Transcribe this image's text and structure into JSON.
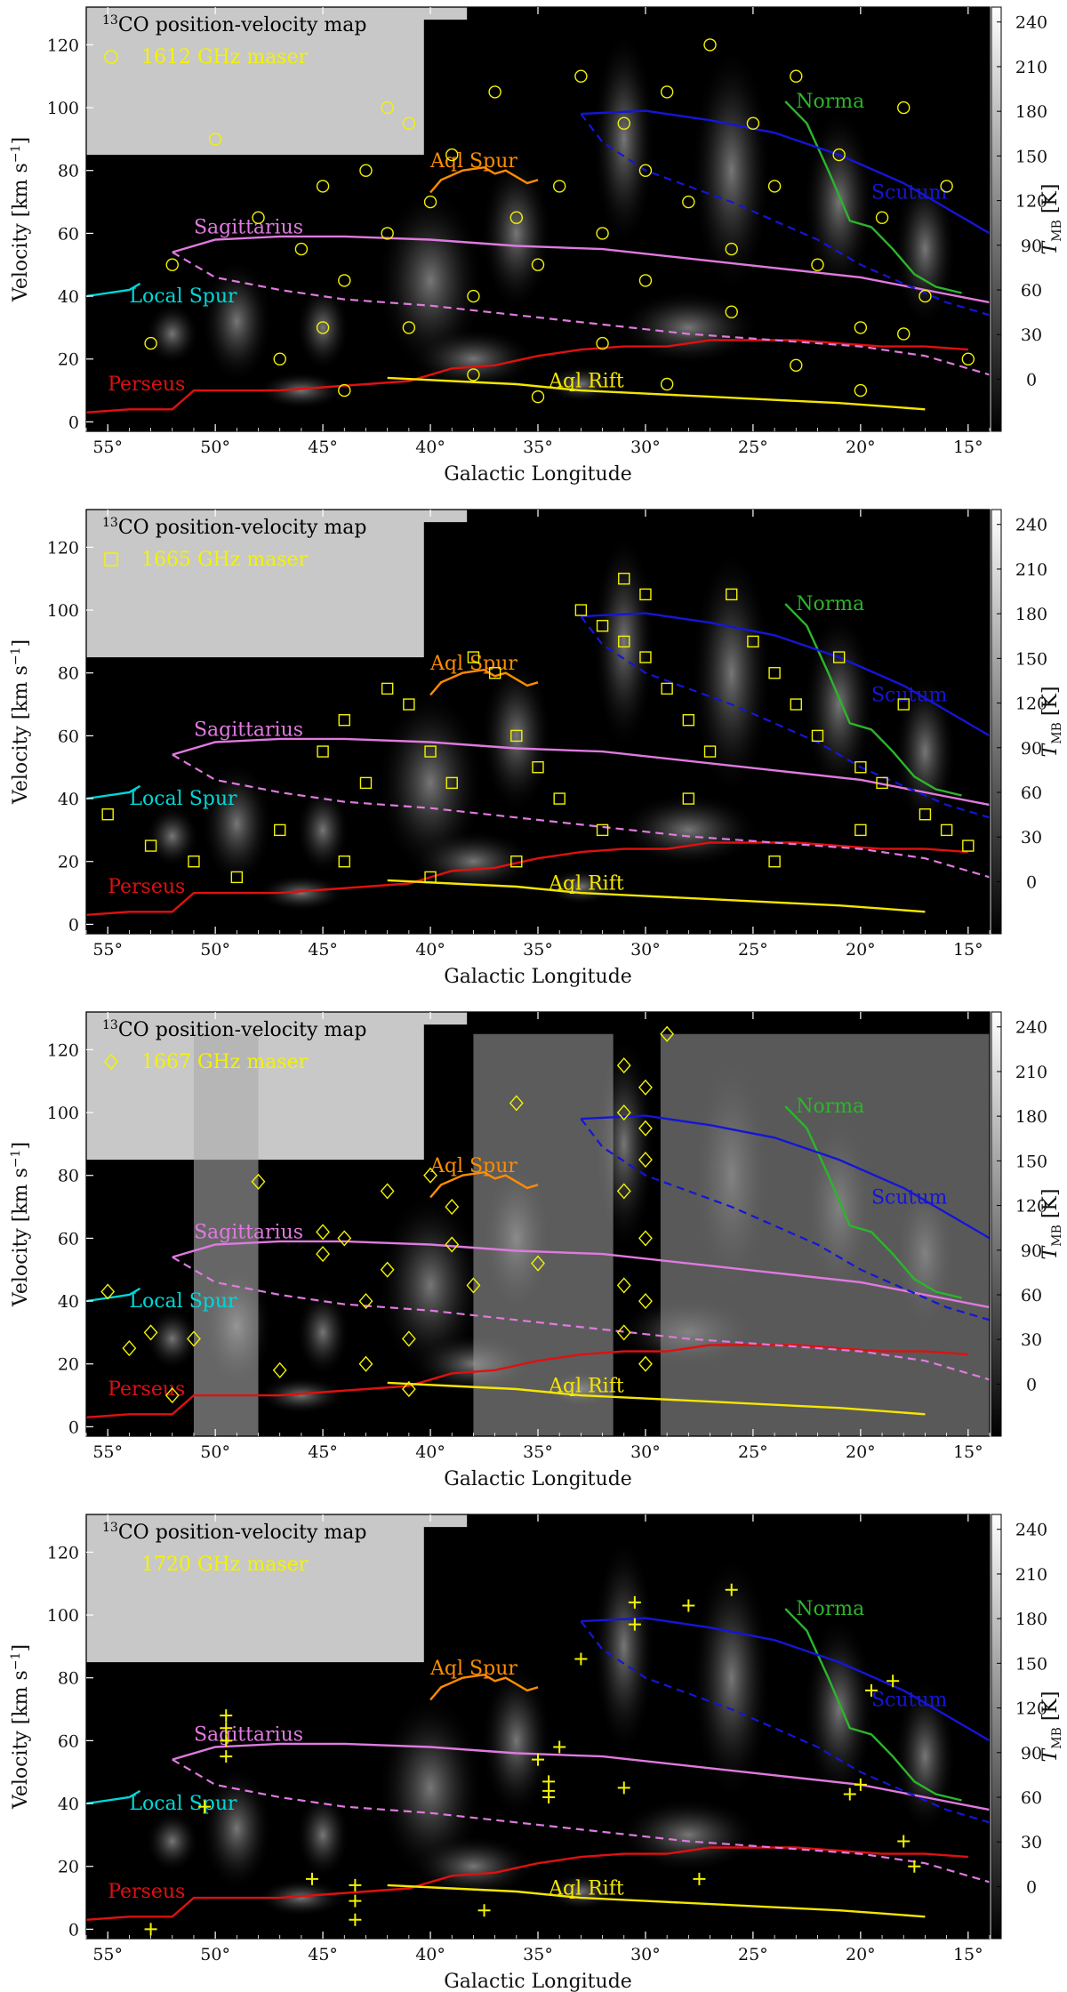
{
  "chart_data": [
    {
      "type": "scatter",
      "title": "13CO position-velocity map",
      "legend": "1612 GHz maser",
      "marker": "circle",
      "xlabel": "Galactic Longitude",
      "ylabel": "Velocity [km s⁻¹]",
      "colorbar_label": "T_MB [K]",
      "points": [
        [
          53,
          25
        ],
        [
          52,
          50
        ],
        [
          50,
          90
        ],
        [
          48,
          65
        ],
        [
          46,
          55
        ],
        [
          45,
          30
        ],
        [
          44,
          45
        ],
        [
          43,
          80
        ],
        [
          42,
          60
        ],
        [
          41,
          95
        ],
        [
          40,
          70
        ],
        [
          39,
          85
        ],
        [
          38,
          40
        ],
        [
          37,
          105
        ],
        [
          36,
          65
        ],
        [
          35,
          50
        ],
        [
          34,
          75
        ],
        [
          33,
          110
        ],
        [
          32,
          60
        ],
        [
          31,
          95
        ],
        [
          30,
          80
        ],
        [
          30,
          45
        ],
        [
          29,
          105
        ],
        [
          28,
          70
        ],
        [
          27,
          120
        ],
        [
          26,
          55
        ],
        [
          25,
          95
        ],
        [
          24,
          75
        ],
        [
          23,
          110
        ],
        [
          22,
          50
        ],
        [
          21,
          85
        ],
        [
          20,
          30
        ],
        [
          19,
          65
        ],
        [
          18,
          100
        ],
        [
          17,
          40
        ],
        [
          16,
          75
        ],
        [
          15,
          20
        ],
        [
          47,
          20
        ],
        [
          44,
          10
        ],
        [
          41,
          30
        ],
        [
          38,
          15
        ],
        [
          35,
          8
        ],
        [
          32,
          25
        ],
        [
          29,
          12
        ],
        [
          26,
          35
        ],
        [
          23,
          18
        ],
        [
          20,
          10
        ],
        [
          18,
          28
        ],
        [
          45,
          75
        ],
        [
          42,
          100
        ]
      ]
    },
    {
      "type": "scatter",
      "title": "13CO position-velocity map",
      "legend": "1665 GHz maser",
      "marker": "square",
      "xlabel": "Galactic Longitude",
      "ylabel": "Velocity [km s⁻¹]",
      "colorbar_label": "T_MB [K]",
      "points": [
        [
          55,
          35
        ],
        [
          53,
          25
        ],
        [
          51,
          20
        ],
        [
          49,
          15
        ],
        [
          47,
          30
        ],
        [
          45,
          55
        ],
        [
          44,
          65
        ],
        [
          43,
          45
        ],
        [
          42,
          75
        ],
        [
          41,
          70
        ],
        [
          40,
          55
        ],
        [
          39,
          45
        ],
        [
          38,
          85
        ],
        [
          37,
          80
        ],
        [
          36,
          60
        ],
        [
          35,
          50
        ],
        [
          34,
          40
        ],
        [
          33,
          100
        ],
        [
          32,
          95
        ],
        [
          31,
          110
        ],
        [
          31,
          90
        ],
        [
          30,
          105
        ],
        [
          30,
          85
        ],
        [
          29,
          75
        ],
        [
          28,
          65
        ],
        [
          27,
          55
        ],
        [
          26,
          105
        ],
        [
          25,
          90
        ],
        [
          24,
          80
        ],
        [
          23,
          70
        ],
        [
          22,
          60
        ],
        [
          21,
          85
        ],
        [
          20,
          50
        ],
        [
          19,
          45
        ],
        [
          18,
          70
        ],
        [
          17,
          35
        ],
        [
          16,
          30
        ],
        [
          15,
          25
        ],
        [
          44,
          20
        ],
        [
          40,
          15
        ],
        [
          36,
          20
        ],
        [
          32,
          30
        ],
        [
          28,
          40
        ],
        [
          24,
          20
        ],
        [
          20,
          30
        ]
      ]
    },
    {
      "type": "scatter",
      "title": "13CO position-velocity map",
      "legend": "1667 GHz maser",
      "marker": "diamond",
      "xlabel": "Galactic Longitude",
      "ylabel": "Velocity [km s⁻¹]",
      "colorbar_label": "T_MB [K]",
      "points": [
        [
          55,
          43
        ],
        [
          54,
          25
        ],
        [
          53,
          30
        ],
        [
          52,
          10
        ],
        [
          51,
          28
        ],
        [
          48,
          78
        ],
        [
          47,
          18
        ],
        [
          45,
          62
        ],
        [
          45,
          55
        ],
        [
          44,
          60
        ],
        [
          43,
          40
        ],
        [
          43,
          20
        ],
        [
          42,
          75
        ],
        [
          42,
          50
        ],
        [
          41,
          28
        ],
        [
          41,
          12
        ],
        [
          40,
          80
        ],
        [
          39,
          70
        ],
        [
          39,
          58
        ],
        [
          38,
          45
        ],
        [
          36,
          103
        ],
        [
          35,
          52
        ],
        [
          31,
          115
        ],
        [
          31,
          100
        ],
        [
          30,
          95
        ],
        [
          30,
          85
        ],
        [
          31,
          75
        ],
        [
          30,
          60
        ],
        [
          31,
          45
        ],
        [
          30,
          40
        ],
        [
          31,
          30
        ],
        [
          30,
          20
        ],
        [
          29,
          125
        ],
        [
          30,
          108
        ]
      ]
    },
    {
      "type": "scatter",
      "title": "13CO position-velocity map",
      "legend": "1720 GHz maser",
      "marker": "plus",
      "xlabel": "Galactic Longitude",
      "ylabel": "Velocity [km s⁻¹]",
      "colorbar_label": "T_MB [K]",
      "points": [
        [
          53,
          0
        ],
        [
          50.5,
          39
        ],
        [
          49.5,
          68
        ],
        [
          49.5,
          64
        ],
        [
          49.5,
          60
        ],
        [
          49.5,
          55
        ],
        [
          45.5,
          16
        ],
        [
          43.5,
          14
        ],
        [
          43.5,
          9
        ],
        [
          43.5,
          3
        ],
        [
          37.5,
          6
        ],
        [
          35,
          54
        ],
        [
          34.5,
          47
        ],
        [
          34.5,
          44
        ],
        [
          34.5,
          42
        ],
        [
          34,
          58
        ],
        [
          33,
          86
        ],
        [
          31,
          45
        ],
        [
          30.5,
          104
        ],
        [
          30.5,
          97
        ],
        [
          28,
          103
        ],
        [
          27.5,
          16
        ],
        [
          26,
          108
        ],
        [
          20.5,
          43
        ],
        [
          20,
          46
        ],
        [
          19.5,
          76
        ],
        [
          18.5,
          79
        ],
        [
          18,
          28
        ],
        [
          17.5,
          20
        ]
      ]
    }
  ],
  "panels": [
    {
      "title_sup": "13",
      "title_text": "CO position-velocity map",
      "legend_text": "1612 GHz maser",
      "marker": "circle"
    },
    {
      "title_sup": "13",
      "title_text": "CO position-velocity map",
      "legend_text": "1665 GHz maser",
      "marker": "square"
    },
    {
      "title_sup": "13",
      "title_text": "CO position-velocity map",
      "legend_text": "1667 GHz maser",
      "marker": "diamond"
    },
    {
      "title_sup": "13",
      "title_text": "CO position-velocity map",
      "legend_text": "1720 GHz maser",
      "marker": "plus"
    }
  ],
  "axes": {
    "xlabel": "Galactic Longitude",
    "ylabel_main": "Velocity [km s",
    "ylabel_sup": "−1",
    "ylabel_end": "]",
    "cbar_label_main": "T",
    "cbar_label_sub": "MB",
    "cbar_label_end": " [K]",
    "xticks": [
      "55°",
      "50°",
      "45°",
      "40°",
      "35°",
      "30°",
      "25°",
      "20°",
      "15°"
    ],
    "xtick_values": [
      55,
      50,
      45,
      40,
      35,
      30,
      25,
      20,
      15
    ],
    "yticks": [
      "0",
      "20",
      "40",
      "60",
      "80",
      "100",
      "120"
    ],
    "ytick_values": [
      0,
      20,
      40,
      60,
      80,
      100,
      120
    ],
    "cbar_ticks": [
      "0",
      "30",
      "60",
      "90",
      "120",
      "150",
      "180",
      "210",
      "240"
    ],
    "cbar_tick_values": [
      0,
      30,
      60,
      90,
      120,
      150,
      180,
      210,
      240
    ],
    "xlim": [
      56,
      14
    ],
    "ylim": [
      -3,
      132
    ],
    "cbar_lim": [
      -35,
      250
    ]
  },
  "arms": [
    {
      "label": "Norma",
      "color": "#2bb52b",
      "lx": 23,
      "ly": 100,
      "pts": [
        [
          23.5,
          102
        ],
        [
          22.5,
          95
        ],
        [
          21.5,
          80
        ],
        [
          21,
          72
        ],
        [
          20.5,
          64
        ],
        [
          19.5,
          62
        ],
        [
          18.5,
          55
        ],
        [
          17.5,
          47
        ],
        [
          16.5,
          43
        ],
        [
          15.3,
          41
        ]
      ]
    },
    {
      "label": "Scutum",
      "color": "#1515d8",
      "lx": 19.5,
      "ly": 71,
      "pts": [
        [
          33,
          98
        ],
        [
          30,
          99
        ],
        [
          27,
          96
        ],
        [
          24,
          92
        ],
        [
          21,
          85
        ],
        [
          18,
          76
        ],
        [
          16,
          68
        ],
        [
          14,
          60
        ]
      ]
    },
    {
      "label": "Sagittarius",
      "color": "#e07ae0",
      "lx": 51,
      "ly": 60,
      "pts": [
        [
          52,
          54
        ],
        [
          50,
          58
        ],
        [
          47,
          59
        ],
        [
          44,
          59
        ],
        [
          40,
          58
        ],
        [
          36,
          56
        ],
        [
          32,
          55
        ],
        [
          28,
          52
        ],
        [
          24,
          49
        ],
        [
          20,
          46
        ],
        [
          17,
          42
        ],
        [
          14,
          38
        ]
      ]
    },
    {
      "label": "Aql Spur",
      "color": "#ff8c00",
      "lx": 40,
      "ly": 81,
      "pts": [
        [
          40,
          73
        ],
        [
          39.5,
          77
        ],
        [
          38.5,
          80
        ],
        [
          37.5,
          81
        ],
        [
          37,
          79
        ],
        [
          36.5,
          80
        ],
        [
          35.5,
          76
        ],
        [
          35,
          77
        ]
      ]
    },
    {
      "label": "Local Spur",
      "color": "#00d8d8",
      "lx": 54,
      "ly": 38,
      "pts": [
        [
          56,
          40
        ],
        [
          55,
          41
        ],
        [
          54,
          42
        ],
        [
          53.5,
          44
        ]
      ]
    },
    {
      "label": "Perseus",
      "color": "#e01010",
      "lx": 55,
      "ly": 10,
      "pts": [
        [
          56,
          3
        ],
        [
          54,
          4
        ],
        [
          52,
          4
        ],
        [
          51,
          10
        ],
        [
          49,
          10
        ],
        [
          47,
          10
        ],
        [
          45,
          11
        ],
        [
          43,
          12
        ],
        [
          41,
          13
        ],
        [
          39,
          17
        ],
        [
          37,
          18
        ],
        [
          35,
          21
        ],
        [
          33,
          23
        ],
        [
          31,
          24
        ],
        [
          29,
          24
        ],
        [
          27,
          26
        ],
        [
          25,
          26
        ],
        [
          23,
          26
        ],
        [
          21,
          25
        ],
        [
          19,
          24
        ],
        [
          17,
          24
        ],
        [
          15,
          23
        ]
      ]
    },
    {
      "label": "Aql Rift",
      "color": "#f5e600",
      "lx": 34.5,
      "ly": 11,
      "pts": [
        [
          42,
          14
        ],
        [
          39,
          13
        ],
        [
          36,
          12
        ],
        [
          33,
          10
        ],
        [
          30,
          9
        ],
        [
          27,
          8
        ],
        [
          24,
          7
        ],
        [
          21,
          6
        ],
        [
          19,
          5
        ],
        [
          17,
          4
        ]
      ]
    }
  ],
  "dashed_arms": [
    {
      "color": "#e07ae0",
      "pts": [
        [
          52,
          54
        ],
        [
          50,
          46
        ],
        [
          47,
          42
        ],
        [
          44,
          39
        ],
        [
          40,
          37
        ],
        [
          36,
          34
        ],
        [
          32,
          31
        ],
        [
          28,
          28
        ],
        [
          24,
          26
        ],
        [
          20,
          24
        ],
        [
          17,
          21
        ],
        [
          14,
          15
        ]
      ]
    },
    {
      "color": "#1515d8",
      "pts": [
        [
          33,
          98
        ],
        [
          32,
          89
        ],
        [
          30,
          80
        ],
        [
          28,
          75
        ],
        [
          26,
          70
        ],
        [
          24,
          64
        ],
        [
          22,
          58
        ],
        [
          20,
          50
        ],
        [
          18,
          44
        ],
        [
          16,
          38
        ],
        [
          14,
          34
        ]
      ]
    }
  ],
  "colors": {
    "marker": "#f3f300",
    "background": "#000000",
    "gray_region": "#c8c8c8"
  }
}
